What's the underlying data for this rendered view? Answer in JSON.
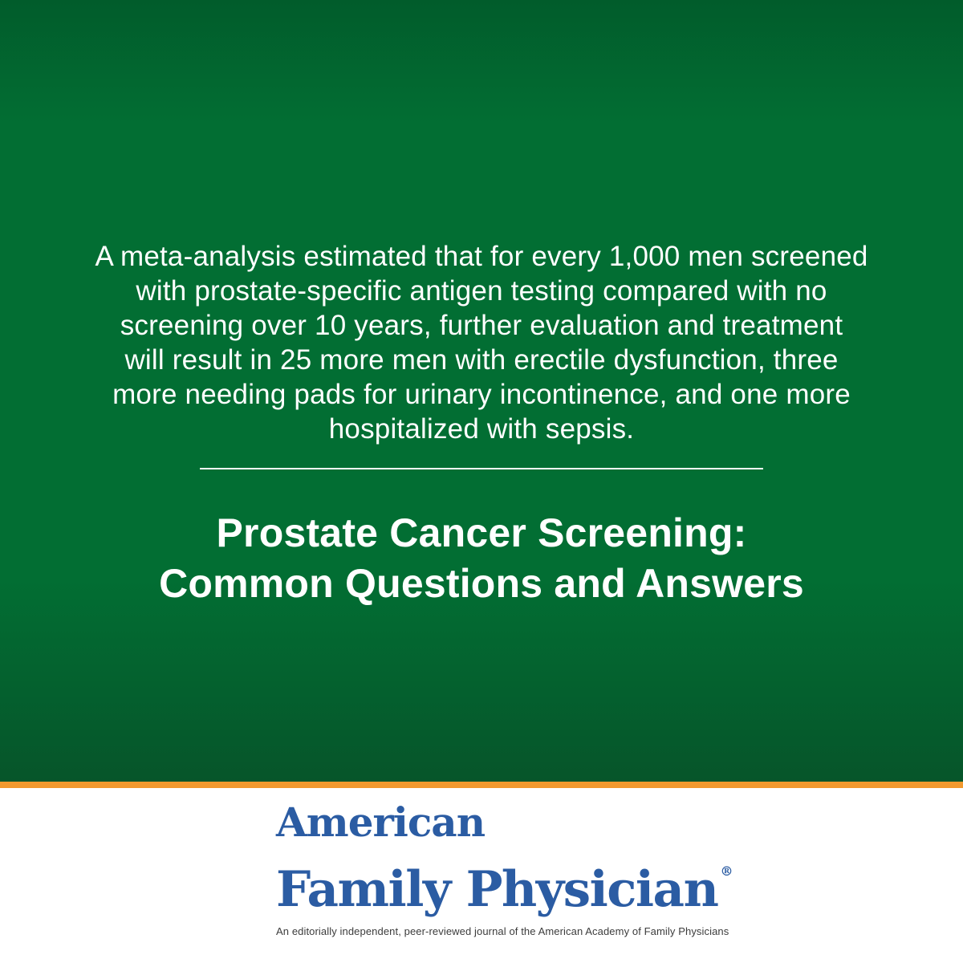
{
  "quote": {
    "lines": [
      "A meta-analysis estimated that for every 1,000 men screened",
      "with prostate-specific antigen testing compared with no",
      "screening over 10 years, further evaluation and treatment",
      "will result in 25 more men with erectile dysfunction, three",
      "more needing pads for urinary incontinence, and one more",
      "hospitalized with sepsis."
    ]
  },
  "title": {
    "lines": [
      "Prostate Cancer Screening:",
      "Common Questions and Answers"
    ]
  },
  "footer": {
    "logo": {
      "line1": "American",
      "line2": "Family Physician",
      "registered_mark": "®"
    },
    "tagline": "An editorially independent, peer-reviewed journal of the American Academy of Family Physicians"
  },
  "colors": {
    "background_green": "#026e33",
    "background_green_top": "#015c2b",
    "background_green_bottom": "#06552a",
    "accent_orange": "#f2992e",
    "logo_blue": "#2b5ca3",
    "quote_text": "#ffffff",
    "tagline_gray": "#3c3c3c"
  }
}
